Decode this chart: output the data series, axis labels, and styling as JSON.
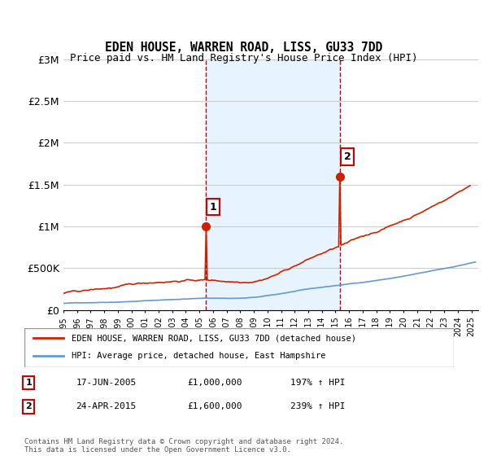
{
  "title": "EDEN HOUSE, WARREN ROAD, LISS, GU33 7DD",
  "subtitle": "Price paid vs. HM Land Registry's House Price Index (HPI)",
  "ylim": [
    0,
    3000000
  ],
  "yticks": [
    0,
    500000,
    1000000,
    1500000,
    2000000,
    2500000,
    3000000
  ],
  "ytick_labels": [
    "£0",
    "£500K",
    "£1M",
    "£1.5M",
    "£2M",
    "£2.5M",
    "£3M"
  ],
  "xlim_start": 1995.0,
  "xlim_end": 2025.5,
  "sale1_x": 2005.46,
  "sale1_y": 1000000,
  "sale1_label": "1",
  "sale2_x": 2015.31,
  "sale2_y": 1600000,
  "sale2_label": "2",
  "legend_line1": "EDEN HOUSE, WARREN ROAD, LISS, GU33 7DD (detached house)",
  "legend_line2": "HPI: Average price, detached house, East Hampshire",
  "table_row1": [
    "1",
    "17-JUN-2005",
    "£1,000,000",
    "197% ↑ HPI"
  ],
  "table_row2": [
    "2",
    "24-APR-2015",
    "£1,600,000",
    "239% ↑ HPI"
  ],
  "footer": "Contains HM Land Registry data © Crown copyright and database right 2024.\nThis data is licensed under the Open Government Licence v3.0.",
  "hpi_color": "#6699cc",
  "price_color": "#cc2200",
  "sale_marker_color": "#cc2200",
  "vline_color": "#cc0000",
  "bg_shade_color": "#ddeeff",
  "grid_color": "#cccccc"
}
